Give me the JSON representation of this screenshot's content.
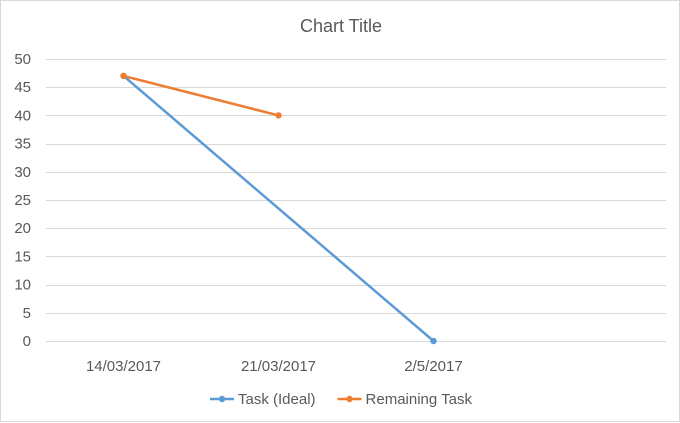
{
  "chart_data": {
    "type": "line",
    "title": "Chart Title",
    "xlabel": "",
    "ylabel": "",
    "categories": [
      "14/03/2017",
      "21/03/2017",
      "2/5/2017",
      ""
    ],
    "ylim": [
      0,
      50
    ],
    "yticks": [
      0,
      5,
      10,
      15,
      20,
      25,
      30,
      35,
      40,
      45,
      50
    ],
    "grid": true,
    "legend_position": "bottom",
    "series": [
      {
        "name": "Task (Ideal)",
        "color": "#5b9bd5",
        "values": [
          47,
          null,
          0,
          null
        ],
        "connect_gaps": true
      },
      {
        "name": "Remaining Task",
        "color": "#ed7d31",
        "values": [
          47,
          40,
          null,
          null
        ],
        "connect_gaps": true
      }
    ]
  }
}
